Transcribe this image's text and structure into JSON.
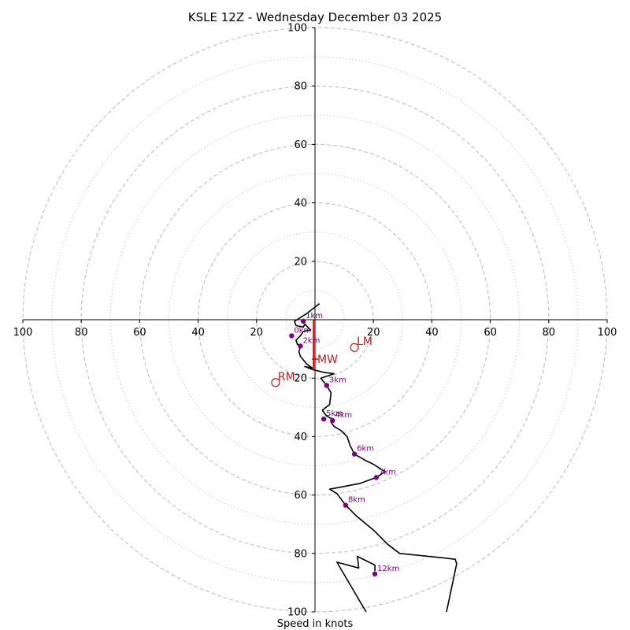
{
  "chart_data": {
    "type": "hodograph",
    "title": "KSLE 12Z - Wednesday December 03 2025",
    "xlabel": "Speed in knots",
    "units": "knots",
    "range": [
      -100,
      100
    ],
    "ring_major": [
      20,
      40,
      60,
      80,
      100
    ],
    "ring_minor": [
      10,
      30,
      50,
      70,
      90
    ],
    "tick_values": [
      100,
      80,
      60,
      40,
      20
    ],
    "trace": [
      [
        1.5,
        5.5
      ],
      [
        -3,
        2
      ],
      [
        -7,
        -0.5
      ],
      [
        -6.5,
        -2
      ],
      [
        -4,
        -2.5
      ],
      [
        -3.5,
        -1.5
      ],
      [
        -2.5,
        -2.5
      ],
      [
        -1.5,
        -3.5
      ],
      [
        -4,
        -4
      ],
      [
        -5,
        -5.5
      ],
      [
        -6.5,
        -7
      ],
      [
        -6,
        -8.5
      ],
      [
        -5,
        -9
      ],
      [
        -5.5,
        -11
      ],
      [
        -5,
        -12.5
      ],
      [
        -3,
        -15
      ],
      [
        -1,
        -16.5
      ],
      [
        -3.5,
        -16
      ],
      [
        -1,
        -17
      ],
      [
        3,
        -18
      ],
      [
        6.5,
        -18.5
      ],
      [
        2,
        -20
      ],
      [
        4,
        -22.5
      ],
      [
        5.5,
        -25
      ],
      [
        5,
        -29
      ],
      [
        2.5,
        -31
      ],
      [
        4,
        -33
      ],
      [
        6,
        -34
      ],
      [
        5.5,
        -35
      ],
      [
        6.5,
        -36.5
      ],
      [
        9,
        -38
      ],
      [
        11,
        -40
      ],
      [
        12,
        -43
      ],
      [
        13.5,
        -46
      ],
      [
        17,
        -48
      ],
      [
        20,
        -49.5
      ],
      [
        24,
        -52
      ],
      [
        21,
        -54
      ],
      [
        15.5,
        -56
      ],
      [
        5,
        -58
      ],
      [
        7.5,
        -59.5
      ],
      [
        10.5,
        -63.5
      ],
      [
        14,
        -67
      ],
      [
        20,
        -72
      ],
      [
        25,
        -77
      ],
      [
        29,
        -80
      ],
      [
        44,
        -81.5
      ],
      [
        48,
        -82
      ],
      [
        48.5,
        -83.5
      ],
      [
        45,
        -100
      ]
    ],
    "trace_upper": [
      [
        17.5,
        -100
      ],
      [
        7.5,
        -83
      ],
      [
        15,
        -85
      ],
      [
        14.5,
        -81
      ],
      [
        20.5,
        -84
      ],
      [
        20.5,
        -86
      ]
    ],
    "height_markers": [
      {
        "label": "1km",
        "u": -4,
        "v": -0.5
      },
      {
        "label": "0km",
        "u": -8,
        "v": -5.5
      },
      {
        "label": "2km",
        "u": -5,
        "v": -9
      },
      {
        "label": "3km",
        "u": 4,
        "v": -22.5
      },
      {
        "label": "5km",
        "u": 3,
        "v": -34
      },
      {
        "label": "4km",
        "u": 6,
        "v": -34.5
      },
      {
        "label": "6km",
        "u": 13.5,
        "v": -46
      },
      {
        "label": "7km",
        "u": 21,
        "v": -54
      },
      {
        "label": "8km",
        "u": 10.5,
        "v": -63.5
      },
      {
        "label": "12km",
        "u": 20.5,
        "v": -87
      }
    ],
    "storm_motion": [
      {
        "label": "RM",
        "u": -13.5,
        "v": -21.5
      },
      {
        "label": "LM",
        "u": 13.5,
        "v": -9.5
      },
      {
        "label": "MW",
        "u": 0,
        "v": -13.5
      }
    ],
    "shear_vector": {
      "u0": -0.5,
      "v0": 0,
      "u1": -0.5,
      "v1": -17
    },
    "colors": {
      "trace": "#000000",
      "marker": "#800080",
      "storm": "#b22222",
      "shear": "#ff0000",
      "grid": "#bfbfbf",
      "axis": "#000000"
    }
  }
}
